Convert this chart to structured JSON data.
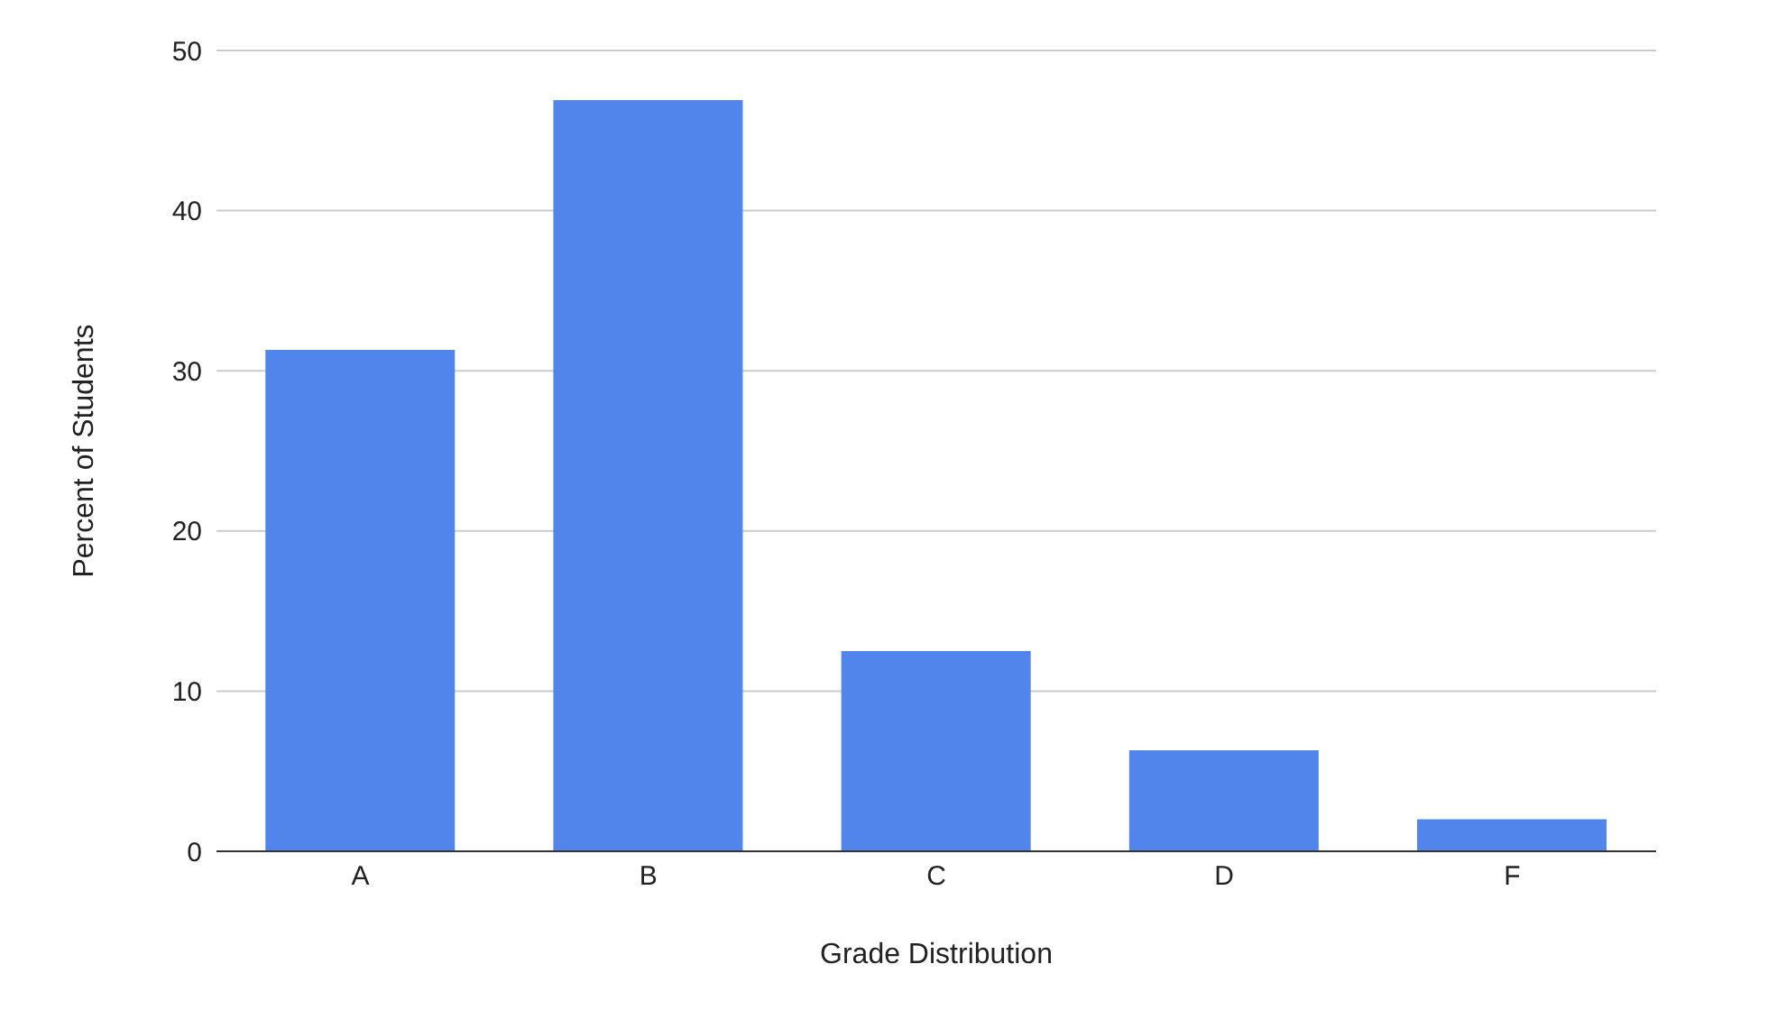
{
  "chart_data": {
    "type": "bar",
    "xlabel": "Grade Distribution",
    "ylabel": "Percent of Students",
    "categories": [
      "A",
      "B",
      "C",
      "D",
      "F"
    ],
    "values": [
      31.3,
      46.9,
      12.5,
      6.3,
      2.0
    ],
    "color": "#5185ec",
    "ylim": [
      0,
      50
    ],
    "yticks": [
      0,
      10,
      20,
      30,
      40,
      50
    ],
    "grid": "y"
  }
}
